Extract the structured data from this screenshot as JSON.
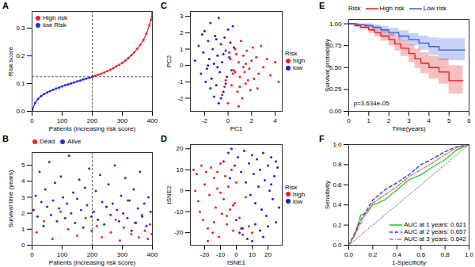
{
  "chart_data": [
    {
      "title": "A",
      "type": "line",
      "marker": "dot",
      "legend": "top-left",
      "xlabel": "Patients (increasing risk score)",
      "ylabel": "Risk score",
      "xlim": [
        0,
        400
      ],
      "xticks": [
        0,
        100,
        200,
        300,
        400
      ],
      "ylim": [
        0,
        0.36
      ],
      "yticks": [
        {
          "value": 0,
          "label": "0.0"
        },
        0.1,
        0.2,
        0.3
      ],
      "reference_lines": {
        "x": 200,
        "y": 0.125
      },
      "series": [
        {
          "name": "High risk",
          "color": "#e8262a",
          "x": [
            201,
            210,
            220,
            230,
            240,
            250,
            260,
            270,
            280,
            290,
            300,
            310,
            320,
            330,
            340,
            350,
            360,
            370,
            380,
            390,
            395,
            400
          ],
          "values": [
            0.125,
            0.128,
            0.132,
            0.136,
            0.14,
            0.145,
            0.15,
            0.156,
            0.162,
            0.168,
            0.175,
            0.183,
            0.192,
            0.202,
            0.213,
            0.226,
            0.24,
            0.257,
            0.28,
            0.31,
            0.33,
            0.355
          ]
        },
        {
          "name": "low Risk",
          "color": "#2b2bd6",
          "x": [
            1,
            10,
            20,
            30,
            40,
            50,
            60,
            70,
            80,
            90,
            100,
            110,
            120,
            130,
            140,
            150,
            160,
            170,
            180,
            190,
            200
          ],
          "values": [
            0.005,
            0.03,
            0.045,
            0.055,
            0.062,
            0.068,
            0.073,
            0.078,
            0.082,
            0.086,
            0.09,
            0.094,
            0.097,
            0.101,
            0.104,
            0.108,
            0.111,
            0.115,
            0.118,
            0.121,
            0.124
          ]
        }
      ]
    },
    {
      "title": "B",
      "type": "scatter",
      "legend": "top",
      "xlabel": "Patients (increasing risk score)",
      "ylabel": "Survival time (years)",
      "xlim": [
        0,
        400
      ],
      "xticks": [
        0,
        100,
        200,
        300,
        400
      ],
      "ylim": [
        0,
        5.8
      ],
      "yticks": [
        0,
        1,
        2,
        3,
        4,
        5
      ],
      "reference_lines": {
        "x": 200
      },
      "series": [
        {
          "name": "Dead",
          "color": "#e8262a",
          "x": [
            15,
            40,
            68,
            95,
            120,
            150,
            178,
            198,
            215,
            232,
            248,
            262,
            278,
            292,
            305,
            318,
            330,
            342,
            355,
            365,
            375,
            385,
            392,
            398
          ],
          "values": [
            0.8,
            1.5,
            0.4,
            2.1,
            1.0,
            0.6,
            1.7,
            0.9,
            1.2,
            0.5,
            2.4,
            0.8,
            1.6,
            0.3,
            1.1,
            2.8,
            0.7,
            1.4,
            0.5,
            1.9,
            0.9,
            0.4,
            1.3,
            0.7
          ]
        },
        {
          "name": "Alive",
          "color": "#2b2bd6",
          "x": [
            5,
            12,
            18,
            25,
            31,
            38,
            44,
            50,
            57,
            63,
            70,
            76,
            83,
            90,
            96,
            103,
            110,
            116,
            123,
            130,
            137,
            143,
            150,
            157,
            163,
            170,
            176,
            183,
            190,
            197,
            205,
            212,
            219,
            226,
            233,
            240,
            247,
            254,
            261,
            268,
            275,
            282,
            289,
            296,
            303,
            310,
            317,
            324,
            331,
            338,
            345,
            352,
            359,
            366,
            373,
            380,
            387,
            394
          ],
          "values": [
            2.2,
            3.1,
            1.8,
            4.6,
            2.7,
            1.2,
            3.5,
            2.4,
            5.2,
            1.9,
            2.8,
            3.9,
            1.5,
            2.3,
            4.3,
            3.0,
            1.7,
            2.6,
            5.6,
            2.0,
            3.3,
            1.4,
            2.9,
            4.1,
            2.2,
            1.1,
            3.6,
            2.5,
            4.8,
            1.8,
            2.1,
            3.4,
            1.6,
            4.4,
            2.7,
            1.3,
            2.4,
            3.8,
            1.9,
            2.6,
            5.0,
            2.2,
            1.5,
            3.1,
            2.0,
            4.2,
            1.7,
            2.8,
            0.9,
            3.5,
            1.4,
            2.3,
            4.6,
            1.8,
            2.6,
            1.2,
            3.0,
            2.1
          ]
        }
      ]
    },
    {
      "title": "C",
      "type": "scatter",
      "legend": "right",
      "legend_title": "Risk",
      "xlabel": "PC1",
      "ylabel": "PC2",
      "xlim": [
        -3.2,
        4.6
      ],
      "xticks": [
        -2,
        0,
        2,
        4
      ],
      "ylim": [
        -2.8,
        3.3
      ],
      "yticks": [
        -2,
        -1,
        0,
        1,
        2,
        3
      ],
      "series": [
        {
          "name": "high",
          "color": "#ee1c1c",
          "x": [
            -0.5,
            -0.2,
            0.0,
            0.2,
            0.3,
            0.5,
            0.6,
            0.8,
            0.9,
            1.0,
            1.1,
            1.2,
            1.3,
            1.4,
            1.5,
            1.6,
            1.8,
            1.9,
            2.0,
            2.2,
            2.4,
            2.6,
            2.8,
            3.0,
            3.3,
            3.6,
            4.0,
            4.3,
            0.4,
            0.7,
            1.0,
            1.3,
            1.7,
            2.1,
            0.1,
            0.9,
            1.5,
            2.5,
            -0.3,
            0.6
          ],
          "values": [
            -1.8,
            -0.9,
            -2.3,
            0.4,
            -1.2,
            -0.3,
            1.0,
            -1.6,
            0.2,
            -0.7,
            1.5,
            -2.0,
            0.6,
            -0.4,
            -1.1,
            0.9,
            -0.2,
            -1.5,
            0.3,
            -0.8,
            0.5,
            -0.5,
            1.2,
            -0.1,
            0.4,
            -0.6,
            0.2,
            -1.0,
            -0.5,
            0.7,
            -1.3,
            -0.1,
            -0.9,
            1.1,
            0.8,
            -2.5,
            0.1,
            -1.4,
            -1.3,
            -0.4
          ]
        },
        {
          "name": "low",
          "color": "#1c1cee",
          "x": [
            -2.8,
            -2.5,
            -2.3,
            -2.1,
            -2.0,
            -1.8,
            -1.7,
            -1.6,
            -1.5,
            -1.4,
            -1.3,
            -1.2,
            -1.1,
            -1.0,
            -0.9,
            -0.8,
            -0.7,
            -0.6,
            -0.5,
            -0.4,
            -0.3,
            -0.2,
            -0.1,
            0.0,
            0.1,
            0.2,
            0.3,
            0.5,
            -1.9,
            -1.2,
            -0.6,
            -2.2,
            -0.9,
            -0.4,
            -1.5,
            0.4,
            -1.0,
            -0.2,
            -1.7,
            -0.8
          ],
          "values": [
            0.3,
            1.2,
            -0.5,
            0.8,
            2.1,
            -0.2,
            1.5,
            0.4,
            2.6,
            -0.8,
            1.0,
            0.1,
            1.8,
            -1.2,
            0.6,
            2.9,
            -0.4,
            1.3,
            0.2,
            -1.6,
            1.7,
            0.9,
            -0.7,
            2.2,
            0.5,
            1.4,
            -0.3,
            1.1,
            -1.0,
            -1.9,
            -2.0,
            1.9,
            -0.1,
            0.7,
            -1.4,
            2.4,
            1.6,
            -1.1,
            0.0,
            -2.3
          ]
        }
      ]
    },
    {
      "title": "D",
      "type": "scatter",
      "legend": "right",
      "legend_title": "Risk",
      "xlabel": "tSNE1",
      "ylabel": "tSNE2",
      "xlim": [
        -29,
        29
      ],
      "xticks": [
        -20,
        -10,
        0,
        10,
        20
      ],
      "ylim": [
        -26,
        22
      ],
      "yticks": [
        -20,
        -10,
        0,
        10,
        20
      ],
      "series": [
        {
          "name": "high",
          "color": "#ee1c1c",
          "x": [
            -27,
            -25,
            -24,
            -22,
            -21,
            -20,
            -19,
            -18,
            -17,
            -16,
            -15,
            -14,
            -13,
            -12,
            -11,
            -10,
            -9,
            -8,
            -7,
            -6,
            -5,
            -4,
            -3,
            -2,
            -1,
            0,
            2,
            4,
            6,
            8,
            -23,
            -18,
            -14,
            -10,
            -6,
            -2,
            3,
            10,
            -26,
            -12
          ],
          "values": [
            10,
            8,
            -5,
            12,
            -14,
            3,
            9,
            -18,
            -2,
            11,
            -20,
            6,
            -8,
            1,
            -22,
            13,
            -11,
            -4,
            7,
            -16,
            2,
            -9,
            10,
            -19,
            -6,
            4,
            -13,
            -21,
            -3,
            -17,
            -10,
            -24,
            -15,
            -1,
            -12,
            -7,
            -18,
            -20,
            0,
            9
          ]
        },
        {
          "name": "low",
          "color": "#1c1cee",
          "x": [
            -8,
            -5,
            -3,
            -1,
            1,
            3,
            5,
            6,
            8,
            9,
            10,
            11,
            12,
            13,
            14,
            15,
            16,
            17,
            18,
            19,
            20,
            21,
            22,
            23,
            24,
            25,
            26,
            27,
            2,
            7,
            12,
            17,
            22,
            -4,
            0,
            4,
            10,
            15,
            20,
            25
          ],
          "values": [
            14,
            18,
            20,
            12,
            16,
            9,
            19,
            4,
            13,
            -2,
            17,
            8,
            -6,
            15,
            2,
            10,
            -9,
            18,
            5,
            -12,
            12,
            0,
            16,
            -4,
            7,
            -15,
            11,
            -8,
            -20,
            -23,
            -16,
            -22,
            3,
            6,
            -14,
            -18,
            -24,
            -19,
            -17,
            14
          ]
        }
      ]
    },
    {
      "title": "E",
      "type": "step",
      "legend": "top",
      "legend_title": "Risk",
      "xlabel": "Time(years)",
      "ylabel": "Survival probability",
      "xlim": [
        0,
        6
      ],
      "xticks": [
        0,
        1,
        2,
        3,
        4,
        5,
        6
      ],
      "ylim": [
        0,
        1.05
      ],
      "yticks": [
        {
          "value": 0,
          "label": "0.00"
        },
        0.25,
        {
          "value": 0.5,
          "label": "0.50"
        },
        0.75,
        {
          "value": 1,
          "label": "1.00"
        }
      ],
      "annotation": "p=3.634e-05",
      "series": [
        {
          "name": "High risk",
          "color": "#e41a1c",
          "x": [
            0,
            0.3,
            0.6,
            1.0,
            1.3,
            1.6,
            2.0,
            2.3,
            2.6,
            3.0,
            3.3,
            3.6,
            4.0,
            4.5,
            5.0,
            5.5,
            5.7
          ],
          "values": [
            1.0,
            0.98,
            0.96,
            0.93,
            0.9,
            0.86,
            0.82,
            0.77,
            0.72,
            0.66,
            0.6,
            0.55,
            0.5,
            0.45,
            0.35,
            0.35,
            0.35
          ],
          "lower": [
            1.0,
            0.96,
            0.93,
            0.89,
            0.85,
            0.8,
            0.75,
            0.69,
            0.63,
            0.56,
            0.49,
            0.43,
            0.37,
            0.31,
            0.2,
            0.2,
            0.2
          ],
          "upper": [
            1.0,
            1.0,
            0.99,
            0.97,
            0.95,
            0.92,
            0.89,
            0.85,
            0.81,
            0.76,
            0.71,
            0.67,
            0.63,
            0.6,
            0.52,
            0.52,
            0.52
          ]
        },
        {
          "name": "Low risk",
          "color": "#3b5bdb",
          "x": [
            0,
            0.4,
            0.8,
            1.2,
            1.6,
            2.0,
            2.5,
            3.0,
            3.5,
            4.0,
            4.5,
            5.0,
            5.5,
            5.8
          ],
          "values": [
            1.0,
            0.99,
            0.98,
            0.96,
            0.93,
            0.9,
            0.86,
            0.82,
            0.78,
            0.74,
            0.7,
            0.7,
            0.7,
            0.7
          ],
          "lower": [
            1.0,
            0.98,
            0.96,
            0.93,
            0.89,
            0.85,
            0.8,
            0.75,
            0.7,
            0.64,
            0.58,
            0.58,
            0.58,
            0.58
          ],
          "upper": [
            1.0,
            1.0,
            1.0,
            0.99,
            0.97,
            0.95,
            0.92,
            0.89,
            0.86,
            0.84,
            0.83,
            0.83,
            0.83,
            0.83
          ]
        }
      ]
    },
    {
      "title": "F",
      "type": "roc",
      "legend": "bottom-right",
      "xlabel": "1-Specificity",
      "ylabel": "Sensitivity",
      "xlim": [
        0,
        1
      ],
      "xticks": [
        {
          "value": 0,
          "label": "0.0"
        },
        0.2,
        0.4,
        0.6,
        0.8,
        {
          "value": 1,
          "label": "1.0"
        }
      ],
      "ylim": [
        0,
        1
      ],
      "yticks": [
        {
          "value": 0,
          "label": "0.0"
        },
        0.2,
        0.4,
        0.6,
        0.8,
        {
          "value": 1,
          "label": "1.0"
        }
      ],
      "series": [
        {
          "name": "AUC at 1 years: 0.621",
          "color": "#2bc62b",
          "line_style": "solid",
          "x": [
            0,
            0.05,
            0.1,
            0.15,
            0.2,
            0.3,
            0.4,
            0.5,
            0.6,
            0.7,
            0.8,
            0.9,
            1.0
          ],
          "values": [
            0,
            0.1,
            0.3,
            0.32,
            0.4,
            0.45,
            0.55,
            0.65,
            0.7,
            0.78,
            0.85,
            0.95,
            1.0
          ]
        },
        {
          "name": "AUC at 2 years: 0.657",
          "color": "#3333cc",
          "line_style": "dashed",
          "x": [
            0,
            0.05,
            0.1,
            0.15,
            0.2,
            0.3,
            0.4,
            0.5,
            0.6,
            0.7,
            0.8,
            0.9,
            1.0
          ],
          "values": [
            0,
            0.12,
            0.25,
            0.35,
            0.45,
            0.55,
            0.62,
            0.7,
            0.8,
            0.86,
            0.93,
            0.98,
            1.0
          ]
        },
        {
          "name": "AUC at 3 years: 0.642",
          "color": "#e8646a",
          "line_style": "dotdash",
          "x": [
            0,
            0.05,
            0.1,
            0.15,
            0.2,
            0.3,
            0.4,
            0.5,
            0.6,
            0.7,
            0.8,
            0.9,
            1.0
          ],
          "values": [
            0,
            0.1,
            0.22,
            0.33,
            0.42,
            0.5,
            0.58,
            0.68,
            0.75,
            0.82,
            0.9,
            0.97,
            1.0
          ]
        }
      ]
    }
  ]
}
